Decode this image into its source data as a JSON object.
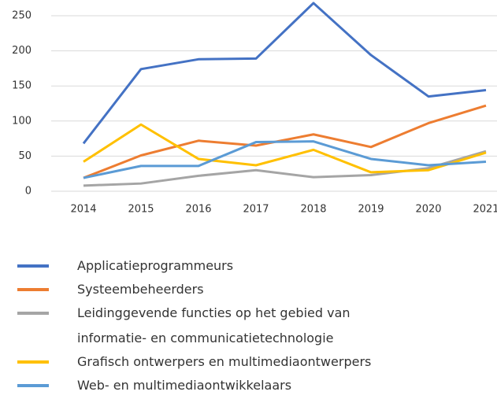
{
  "chart_data": {
    "type": "line",
    "categories": [
      "2014",
      "2015",
      "2016",
      "2017",
      "2018",
      "2019",
      "2020",
      "2021"
    ],
    "series": [
      {
        "name": "Applicatieprogrammeurs",
        "color": "#4472c4",
        "values": [
          68,
          174,
          188,
          189,
          268,
          194,
          135,
          144
        ]
      },
      {
        "name": "Systeembeheerders",
        "color": "#ed7d31",
        "values": [
          19,
          51,
          72,
          65,
          81,
          63,
          97,
          122
        ]
      },
      {
        "name": "Leidinggevende functies op het gebied van informatie- en communicatietechnologie",
        "color": "#a5a5a5",
        "values": [
          8,
          11,
          22,
          30,
          20,
          23,
          33,
          57
        ]
      },
      {
        "name": "Grafisch ontwerpers en multimediaontwerpers",
        "color": "#ffc000",
        "values": [
          42,
          95,
          46,
          37,
          59,
          27,
          30,
          55
        ]
      },
      {
        "name": "Web- en multimediaontwikkelaars",
        "color": "#5b9bd5",
        "values": [
          19,
          36,
          36,
          70,
          71,
          46,
          37,
          42
        ]
      }
    ],
    "ylim": [
      0,
      250
    ],
    "yticks": [
      0,
      50,
      100,
      150,
      200,
      250
    ],
    "grid": true
  }
}
